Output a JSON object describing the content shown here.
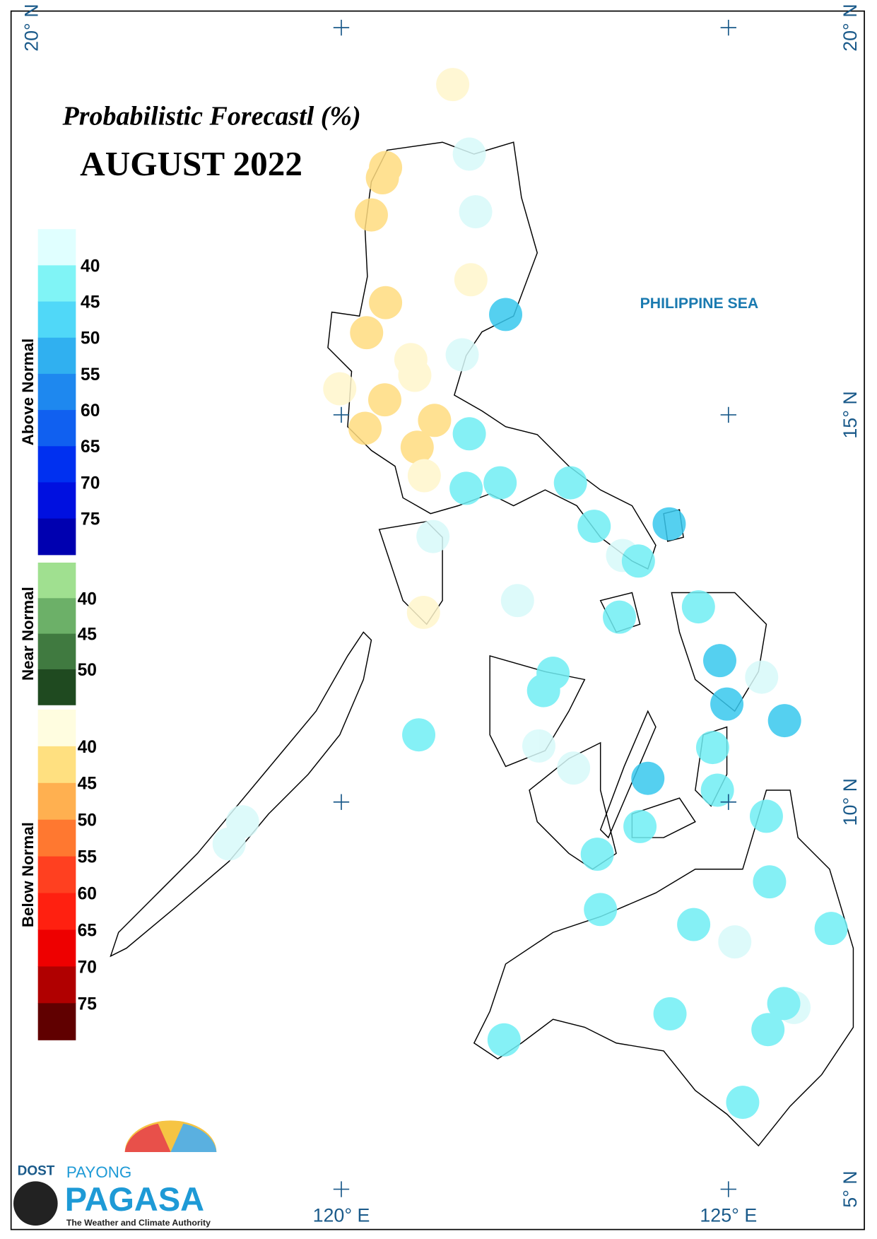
{
  "header": {
    "title": "Probabilistic Forecastl (%)",
    "subtitle": "AUGUST 2022"
  },
  "legend": [
    {
      "title": "Above Normal",
      "labels": [
        40,
        45,
        50,
        55,
        60,
        65,
        70,
        75
      ],
      "colors": [
        "#e0ffff",
        "#80f4f6",
        "#50d8f8",
        "#30b0f0",
        "#1e88ef",
        "#1060f0",
        "#0030f0",
        "#0010e0",
        "#0000b0"
      ]
    },
    {
      "title": "Near Normal",
      "labels": [
        40,
        45,
        50
      ],
      "colors": [
        "#a0e090",
        "#6cb068",
        "#407a40",
        "#1f4a20"
      ]
    },
    {
      "title": "Below Normal",
      "labels": [
        40,
        45,
        50,
        55,
        60,
        65,
        70,
        75
      ],
      "colors": [
        "#fffde0",
        "#ffe080",
        "#ffb050",
        "#ff7830",
        "#ff4020",
        "#ff2010",
        "#ee0000",
        "#b00000",
        "#600000"
      ]
    }
  ],
  "axes": {
    "lat": [
      "20° N",
      "15° N",
      "10° N",
      "5° N"
    ],
    "lon": [
      "120° E",
      "125° E"
    ]
  },
  "map": {
    "sea_label": "PHILIPPINE SEA"
  },
  "logo": {
    "agency": "DOST",
    "line1": "PAYONG",
    "line2": "PAGASA",
    "tagline": "The Weather and Climate Authority"
  }
}
